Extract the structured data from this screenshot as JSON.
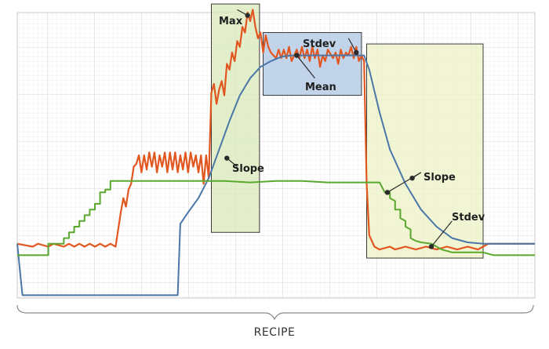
{
  "chart_data": {
    "type": "line",
    "title": "",
    "xlabel": "RECIPE",
    "ylabel": "",
    "grid": true,
    "legend": "none",
    "xlim": [
      0,
      100
    ],
    "ylim": [
      0,
      100
    ],
    "series": [
      {
        "color": "#e2561f",
        "points": [
          [
            0,
            19
          ],
          [
            3,
            18
          ],
          [
            4,
            19
          ],
          [
            6,
            18
          ],
          [
            7,
            19
          ],
          [
            9,
            18
          ],
          [
            10,
            19
          ],
          [
            11,
            18
          ],
          [
            12,
            19
          ],
          [
            13,
            18
          ],
          [
            14,
            19
          ],
          [
            15,
            18
          ],
          [
            16,
            19
          ],
          [
            17,
            18
          ],
          [
            18,
            19
          ],
          [
            19,
            18
          ],
          [
            20,
            30
          ],
          [
            20.5,
            35
          ],
          [
            21,
            32
          ],
          [
            21.5,
            38
          ],
          [
            22,
            40
          ],
          [
            22.5,
            46
          ],
          [
            23,
            47
          ],
          [
            23.5,
            50
          ],
          [
            24,
            44
          ],
          [
            24.5,
            50
          ],
          [
            25,
            45
          ],
          [
            25.5,
            51
          ],
          [
            26,
            46
          ],
          [
            26.5,
            51
          ],
          [
            27,
            44
          ],
          [
            27.5,
            50
          ],
          [
            28,
            46
          ],
          [
            28.5,
            51
          ],
          [
            29,
            44
          ],
          [
            29.5,
            51
          ],
          [
            30,
            45
          ],
          [
            30.5,
            51
          ],
          [
            31,
            44
          ],
          [
            31.5,
            50
          ],
          [
            32,
            45
          ],
          [
            32.5,
            51
          ],
          [
            33,
            44
          ],
          [
            33.5,
            51
          ],
          [
            34,
            46
          ],
          [
            34.5,
            50
          ],
          [
            35,
            44
          ],
          [
            35.5,
            50
          ],
          [
            36,
            40
          ],
          [
            36.5,
            50
          ],
          [
            37,
            42
          ],
          [
            37.5,
            72
          ],
          [
            38,
            75
          ],
          [
            38.5,
            68
          ],
          [
            39,
            73
          ],
          [
            39.5,
            76
          ],
          [
            40,
            71
          ],
          [
            40.5,
            82
          ],
          [
            41,
            80
          ],
          [
            41.5,
            86
          ],
          [
            42,
            83
          ],
          [
            42.5,
            90
          ],
          [
            43,
            88
          ],
          [
            43.5,
            95
          ],
          [
            44,
            93
          ],
          [
            44.5,
            100
          ],
          [
            45,
            97
          ],
          [
            45.5,
            101
          ],
          [
            46,
            95
          ],
          [
            46.5,
            91
          ],
          [
            47,
            93
          ],
          [
            47.5,
            86
          ],
          [
            48,
            92
          ],
          [
            48.5,
            88
          ],
          [
            49,
            86
          ],
          [
            50,
            84
          ],
          [
            50.5,
            87
          ],
          [
            51,
            84
          ],
          [
            51.5,
            87
          ],
          [
            52,
            84
          ],
          [
            52.5,
            88
          ],
          [
            53,
            83
          ],
          [
            54,
            87
          ],
          [
            54.5,
            84
          ],
          [
            55,
            88
          ],
          [
            55.5,
            84
          ],
          [
            56,
            87
          ],
          [
            56.5,
            83
          ],
          [
            57,
            88
          ],
          [
            57.5,
            84
          ],
          [
            58,
            87
          ],
          [
            58.5,
            81
          ],
          [
            59,
            85
          ],
          [
            59.5,
            83
          ],
          [
            60,
            87
          ],
          [
            61,
            84
          ],
          [
            61.5,
            86
          ],
          [
            62,
            82
          ],
          [
            62.5,
            87
          ],
          [
            63,
            84
          ],
          [
            63.5,
            86
          ],
          [
            64,
            85
          ],
          [
            64.5,
            88
          ],
          [
            65,
            84
          ],
          [
            65.5,
            88
          ],
          [
            66,
            83
          ],
          [
            66.5,
            85
          ],
          [
            67,
            83
          ],
          [
            67.5,
            40
          ],
          [
            68,
            22
          ],
          [
            69,
            18
          ],
          [
            70,
            17
          ],
          [
            72,
            18
          ],
          [
            73,
            17
          ],
          [
            75,
            18
          ],
          [
            77,
            17
          ],
          [
            79,
            18
          ],
          [
            81,
            17
          ],
          [
            83,
            18
          ],
          [
            85,
            17
          ],
          [
            87,
            18
          ],
          [
            89,
            17
          ],
          [
            90,
            18
          ],
          [
            91,
            19
          ],
          [
            100,
            19
          ]
        ]
      },
      {
        "color": "#4a76a8",
        "points": [
          [
            0,
            19
          ],
          [
            1,
            1
          ],
          [
            2,
            1
          ],
          [
            30,
            1
          ],
          [
            31,
            1
          ],
          [
            31.5,
            26
          ],
          [
            33,
            30
          ],
          [
            35,
            35
          ],
          [
            37,
            42
          ],
          [
            39,
            52
          ],
          [
            41,
            62
          ],
          [
            43,
            71
          ],
          [
            45,
            77
          ],
          [
            47,
            81
          ],
          [
            49,
            83
          ],
          [
            51,
            84.5
          ],
          [
            53,
            85
          ],
          [
            56,
            85
          ],
          [
            60,
            85
          ],
          [
            64,
            85
          ],
          [
            66,
            85
          ],
          [
            67,
            85
          ],
          [
            68,
            80
          ],
          [
            70,
            65
          ],
          [
            72,
            52
          ],
          [
            75,
            40
          ],
          [
            78,
            31
          ],
          [
            81,
            25
          ],
          [
            84,
            21
          ],
          [
            87,
            19.5
          ],
          [
            90,
            19
          ],
          [
            100,
            19
          ]
        ]
      },
      {
        "color": "#5aa82e",
        "points": [
          [
            0,
            15
          ],
          [
            6,
            15
          ],
          [
            6,
            19
          ],
          [
            9,
            19
          ],
          [
            9,
            21
          ],
          [
            10,
            21
          ],
          [
            10,
            23
          ],
          [
            11,
            23
          ],
          [
            11,
            25
          ],
          [
            12,
            25
          ],
          [
            12,
            27
          ],
          [
            13,
            27
          ],
          [
            13,
            29
          ],
          [
            14,
            29
          ],
          [
            14,
            31
          ],
          [
            15,
            31
          ],
          [
            15,
            33
          ],
          [
            16,
            33
          ],
          [
            16,
            37
          ],
          [
            17,
            37
          ],
          [
            17,
            38
          ],
          [
            18,
            38
          ],
          [
            18,
            41
          ],
          [
            28,
            41
          ],
          [
            35,
            41
          ],
          [
            40,
            41
          ],
          [
            45,
            40.5
          ],
          [
            50,
            41
          ],
          [
            55,
            41
          ],
          [
            60,
            40.5
          ],
          [
            65,
            40.5
          ],
          [
            68,
            40.5
          ],
          [
            70,
            40.5
          ],
          [
            71,
            37
          ],
          [
            72,
            37
          ],
          [
            72,
            35
          ],
          [
            73,
            34
          ],
          [
            73,
            31
          ],
          [
            74,
            31
          ],
          [
            74,
            28
          ],
          [
            75,
            27
          ],
          [
            75,
            25
          ],
          [
            76,
            24
          ],
          [
            76,
            21
          ],
          [
            77,
            20
          ],
          [
            78,
            19.5
          ],
          [
            80,
            19
          ],
          [
            82,
            17
          ],
          [
            84,
            16
          ],
          [
            86,
            16
          ],
          [
            90,
            16
          ],
          [
            92,
            15
          ],
          [
            100,
            15
          ]
        ]
      }
    ],
    "annotations": {
      "max": "Max",
      "stdev_top": "Stdev",
      "mean": "Mean",
      "slope_left": "Slope",
      "slope_right": "Slope",
      "stdev_right": "Stdev"
    },
    "regions": [
      {
        "fill": "#d9e8b8",
        "x_range": [
          37.5,
          46.8
        ],
        "y_range": [
          23,
          103
        ]
      },
      {
        "fill": "#b7cde6",
        "x_range": [
          47.5,
          66.5
        ],
        "y_range": [
          71,
          93
        ]
      },
      {
        "fill": "#eef2c6",
        "x_range": [
          67.5,
          90
        ],
        "y_range": [
          14,
          89
        ]
      }
    ],
    "caption": "RECIPE"
  }
}
